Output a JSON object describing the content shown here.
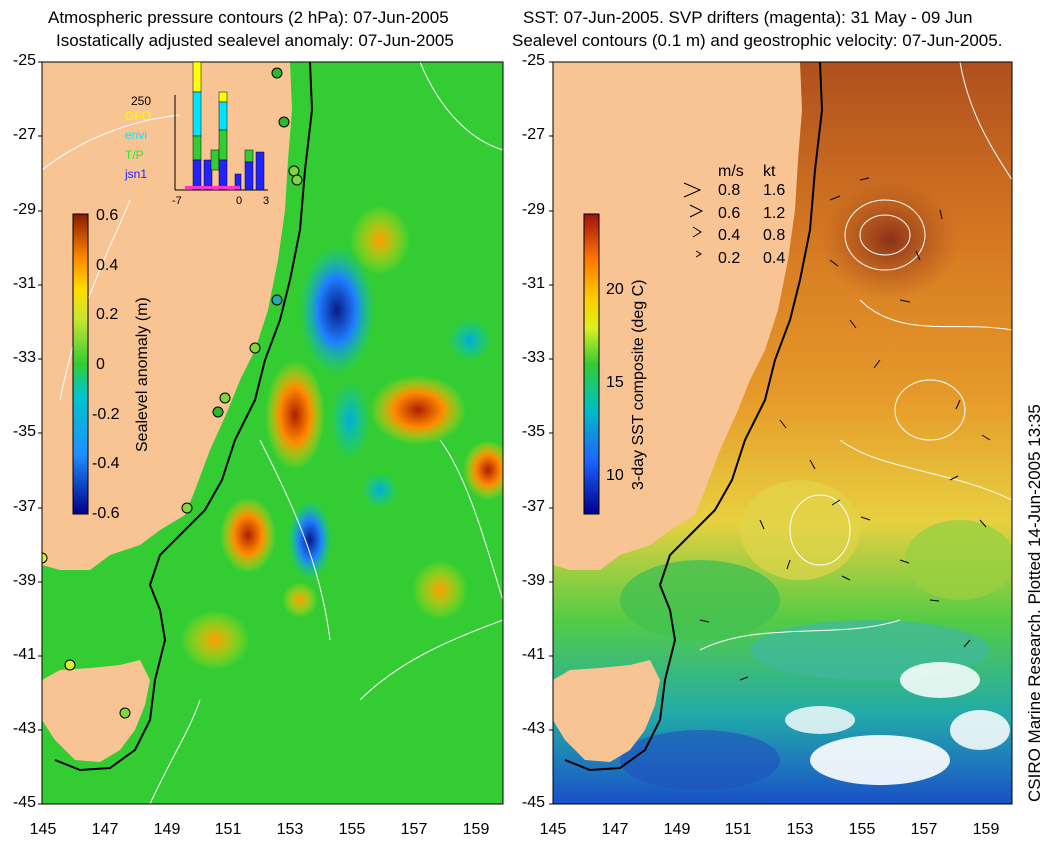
{
  "left_panel": {
    "title_line1": "Atmospheric pressure contours (2 hPa): 07-Jun-2005",
    "title_line2": "Isostatically adjusted sealevel anomaly: 07-Jun-2005",
    "colorbar_label": "Sealevel anomaly (m)",
    "colorbar_ticks": [
      "0.6",
      "0.4",
      "0.2",
      "0",
      "-0.2",
      "-0.4",
      "-0.6"
    ],
    "inset": {
      "max_label": "250",
      "legend": [
        {
          "name": "GFO",
          "color": "#ffff00"
        },
        {
          "name": "envi",
          "color": "#00e5ff"
        },
        {
          "name": "T/P",
          "color": "#33cc33"
        },
        {
          "name": "jsn1",
          "color": "#2222ff"
        }
      ],
      "xticks": [
        "-7",
        "0",
        "3"
      ]
    }
  },
  "right_panel": {
    "title_line1": "SST: 07-Jun-2005. SVP drifters (magenta): 31 May - 09 Jun",
    "title_line2": "Sealevel contours (0.1 m) and geostrophic velocity: 07-Jun-2005.",
    "colorbar_label": "3-day SST composite (deg C)",
    "colorbar_ticks": [
      "20",
      "15",
      "10"
    ],
    "velocity_legend": {
      "header_ms": "m/s",
      "header_kt": "kt",
      "rows": [
        {
          "ms": "0.8",
          "kt": "1.6"
        },
        {
          "ms": "0.6",
          "kt": "1.2"
        },
        {
          "ms": "0.4",
          "kt": "0.8"
        },
        {
          "ms": "0.2",
          "kt": "0.4"
        }
      ]
    }
  },
  "latitude_ticks": [
    "-25",
    "-27",
    "-29",
    "-31",
    "-33",
    "-35",
    "-37",
    "-39",
    "-41",
    "-43",
    "-45"
  ],
  "longitude_ticks": [
    "145",
    "147",
    "149",
    "151",
    "153",
    "155",
    "157",
    "159"
  ],
  "credit": "CSIRO Marine Research. Plotted 14-Jun-2005 13:35",
  "colors": {
    "land": "#f9c494",
    "ocean_base": "#33cc33"
  }
}
